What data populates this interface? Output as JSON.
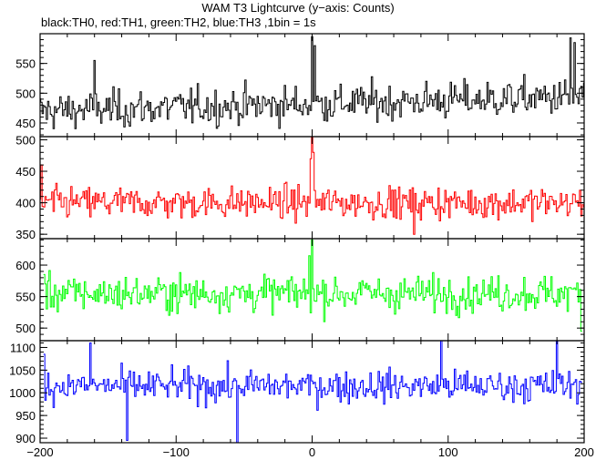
{
  "chart_data": {
    "type": "line",
    "title": "WAM T3 Lightcurve (y−axis: Counts)",
    "subtitle": "black:TH0, red:TH1, green:TH2, blue:TH3 ,1bin = 1s",
    "x": {
      "min": -200,
      "max": 200,
      "step": 1,
      "ticks": [
        -200,
        -100,
        0,
        100,
        200
      ]
    },
    "panels": [
      {
        "name": "TH0",
        "color": "#000000",
        "ylim": [
          427,
          600
        ],
        "yticks": [
          450,
          500,
          550
        ],
        "baseline": 470,
        "trend": 0.06,
        "noise": 22,
        "spikes": [
          [
            0,
            595
          ],
          [
            2,
            580
          ],
          [
            190,
            593
          ],
          [
            193,
            585
          ],
          [
            -160,
            555
          ]
        ],
        "x_range": [
          -200,
          200
        ]
      },
      {
        "name": "TH1",
        "color": "#ff0000",
        "ylim": [
          343,
          505
        ],
        "yticks": [
          350,
          400,
          450,
          500
        ],
        "baseline": 400,
        "trend": 0,
        "noise": 18,
        "spikes": [
          [
            0,
            510
          ],
          [
            -1,
            470
          ],
          [
            1,
            480
          ],
          [
            -199,
            460
          ],
          [
            75,
            350
          ]
        ],
        "x_range": [
          -200,
          200
        ]
      },
      {
        "name": "TH2",
        "color": "#00ff00",
        "ylim": [
          480,
          642
        ],
        "yticks": [
          500,
          550,
          600
        ],
        "baseline": 555,
        "trend": 0,
        "noise": 20,
        "spikes": [
          [
            0,
            640
          ],
          [
            -2,
            615
          ],
          [
            198,
            495
          ],
          [
            -197,
            585
          ]
        ],
        "x_range": [
          -197,
          198
        ]
      },
      {
        "name": "TH3",
        "color": "#0000ff",
        "ylim": [
          890,
          1115
        ],
        "yticks": [
          900,
          950,
          1000,
          1050,
          1100
        ],
        "baseline": 1015,
        "trend": 0,
        "noise": 25,
        "spikes": [
          [
            -163,
            1110
          ],
          [
            -136,
            895
          ],
          [
            -55,
            890
          ],
          [
            95,
            1115
          ],
          [
            180,
            1115
          ],
          [
            -197,
            1085
          ]
        ],
        "x_range": [
          -197,
          198
        ]
      }
    ]
  }
}
